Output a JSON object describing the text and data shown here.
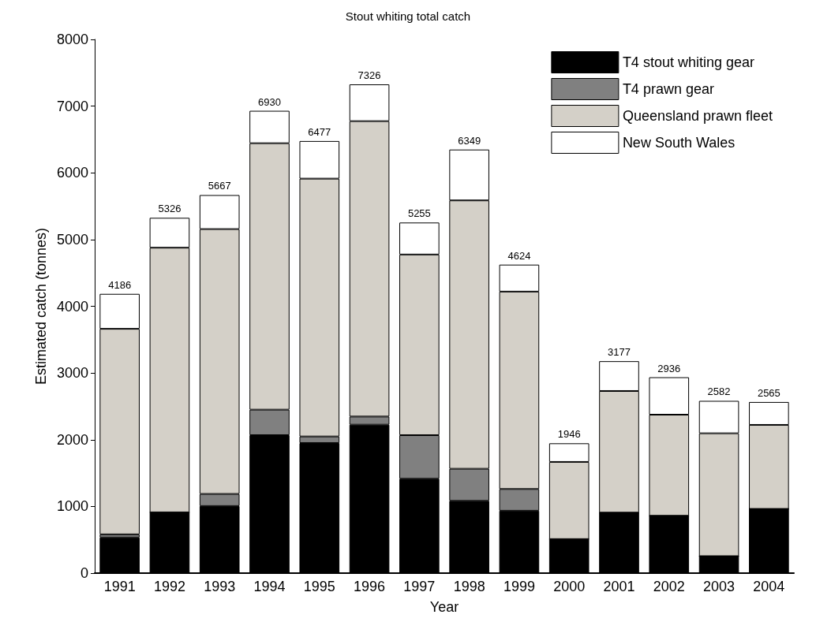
{
  "chart_data": {
    "type": "bar",
    "title": "Stout whiting total catch",
    "xlabel": "Year",
    "ylabel": "Estimated catch (tonnes)",
    "categories": [
      "1991",
      "1992",
      "1993",
      "1994",
      "1995",
      "1996",
      "1997",
      "1998",
      "1999",
      "2000",
      "2001",
      "2002",
      "2003",
      "2004"
    ],
    "stacked": true,
    "series": [
      {
        "name": "T4 stout whiting gear",
        "color": "#000000",
        "values": [
          534,
          911,
          1006,
          2068,
          1950,
          2225,
          1415,
          1084,
          935,
          510,
          907,
          860,
          254,
          962
        ]
      },
      {
        "name": "T4 prawn gear",
        "color": "#808080",
        "values": [
          47,
          0,
          181,
          382,
          98,
          122,
          653,
          480,
          326,
          0,
          0,
          0,
          0,
          0
        ]
      },
      {
        "name": "Queensland prawn fleet",
        "color": "#d4d0c8",
        "values": [
          3081,
          3967,
          3970,
          3994,
          3865,
          4428,
          2708,
          4023,
          2959,
          1157,
          1823,
          1515,
          1842,
          1260
        ]
      },
      {
        "name": "New South Wales",
        "color": "#ffffff",
        "values": [
          524,
          448,
          510,
          486,
          564,
          551,
          479,
          762,
          404,
          279,
          447,
          561,
          486,
          343
        ]
      }
    ],
    "totals": [
      "4186",
      "5326",
      "5667",
      "6930",
      "6477",
      "7326",
      "5255",
      "6349",
      "4624",
      "1946",
      "3177",
      "2936",
      "2582",
      "2565"
    ],
    "ylim": [
      0,
      8000
    ],
    "yticks": [
      0,
      1000,
      2000,
      3000,
      4000,
      5000,
      6000,
      7000,
      8000
    ],
    "grid": false,
    "legend": "top right"
  }
}
